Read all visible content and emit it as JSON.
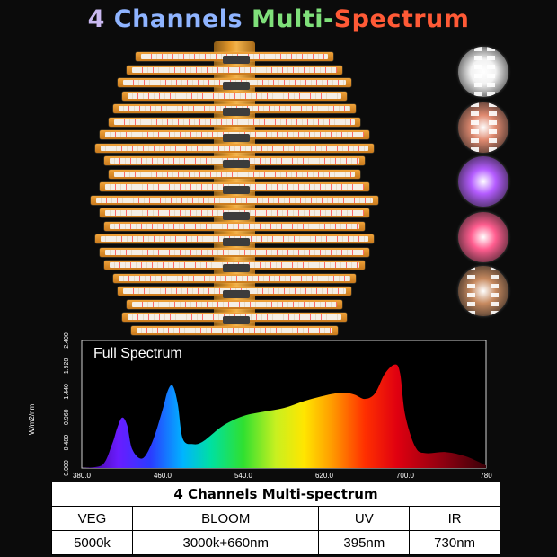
{
  "header": {
    "title_segments": [
      {
        "text": "4 ",
        "color": "#c9b8f0"
      },
      {
        "text": "Channels ",
        "color": "#8fb4ff"
      },
      {
        "text": "Multi-",
        "color": "#7fe07a"
      },
      {
        "text": "Spectrum",
        "color": "#ff5a36"
      }
    ]
  },
  "fixture": {
    "bar_color": "#e69a2e",
    "led_color": "#f4efe7"
  },
  "thumbnails": [
    {
      "name": "white",
      "color": "#f2f2f2"
    },
    {
      "name": "warm-red",
      "color": "#e08a70"
    },
    {
      "name": "uv",
      "color": "#b45cff"
    },
    {
      "name": "pink",
      "color": "#ff5d8f"
    },
    {
      "name": "mixed",
      "color": "#c78a60"
    }
  ],
  "chart_data": {
    "type": "area",
    "title": "Full  Spectrum",
    "ylabel": "W/m2/nm",
    "xlim": [
      380,
      780
    ],
    "ylim": [
      0,
      2.4
    ],
    "x_ticks": [
      "380.0",
      "460.0",
      "540.0",
      "620.0",
      "700.0",
      "780"
    ],
    "y_ticks": [
      "0.000",
      "0.480",
      "0.960",
      "1.440",
      "1.920",
      "2.400"
    ],
    "x": [
      380,
      400,
      410,
      415,
      420,
      425,
      430,
      440,
      450,
      460,
      465,
      470,
      475,
      480,
      490,
      500,
      520,
      540,
      560,
      580,
      600,
      620,
      630,
      640,
      650,
      660,
      670,
      680,
      690,
      695,
      700,
      710,
      720,
      740,
      760,
      780
    ],
    "y": [
      0.0,
      0.05,
      0.45,
      0.75,
      0.95,
      0.8,
      0.35,
      0.18,
      0.5,
      1.1,
      1.45,
      1.55,
      1.2,
      0.55,
      0.45,
      0.5,
      0.8,
      0.98,
      1.06,
      1.13,
      1.26,
      1.36,
      1.4,
      1.42,
      1.38,
      1.3,
      1.4,
      1.78,
      1.95,
      1.78,
      1.0,
      0.4,
      0.28,
      0.3,
      0.22,
      0.05
    ]
  },
  "spec_table": {
    "title": "4 Channels Multi-spectrum",
    "headers": [
      "VEG",
      "BLOOM",
      "UV",
      "IR"
    ],
    "values": [
      "5000k",
      "3000k+660nm",
      "395nm",
      "730nm"
    ]
  }
}
